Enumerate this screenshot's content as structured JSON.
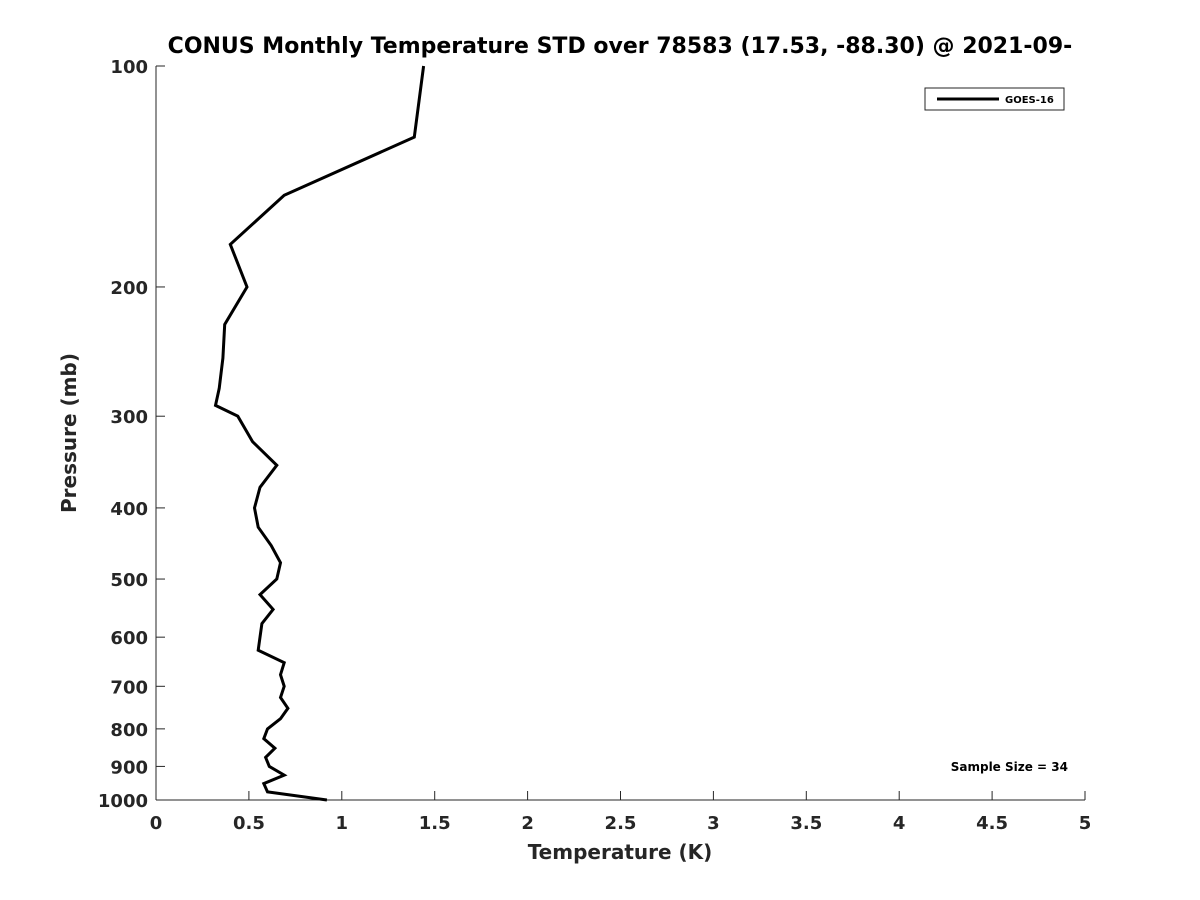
{
  "chart_data": {
    "type": "line",
    "title": "CONUS Monthly Temperature STD over 78583 (17.53, -88.30) @ 2021-09-",
    "xlabel": "Temperature (K)",
    "ylabel": "Pressure (mb)",
    "xlim": [
      0,
      5
    ],
    "ylim": [
      100,
      1000
    ],
    "y_scale": "log",
    "y_reversed": true,
    "xticks": [
      0,
      0.5,
      1,
      1.5,
      2,
      2.5,
      3,
      3.5,
      4,
      4.5,
      5
    ],
    "xtick_labels": [
      "0",
      "0.5",
      "1",
      "1.5",
      "2",
      "2.5",
      "3",
      "3.5",
      "4",
      "4.5",
      "5"
    ],
    "yticks": [
      100,
      200,
      300,
      400,
      500,
      600,
      700,
      800,
      900,
      1000
    ],
    "ytick_labels": [
      "100",
      "200",
      "300",
      "400",
      "500",
      "600",
      "700",
      "800",
      "900",
      "1000"
    ],
    "grid": false,
    "legend_position": "top-right",
    "annotation": "Sample Size = 34",
    "series": [
      {
        "name": "GOES-16",
        "color": "#000000",
        "points": [
          {
            "x": 1.44,
            "p": 100
          },
          {
            "x": 1.39,
            "p": 125
          },
          {
            "x": 0.69,
            "p": 150
          },
          {
            "x": 0.4,
            "p": 175
          },
          {
            "x": 0.49,
            "p": 200
          },
          {
            "x": 0.37,
            "p": 225
          },
          {
            "x": 0.36,
            "p": 250
          },
          {
            "x": 0.34,
            "p": 275
          },
          {
            "x": 0.32,
            "p": 290
          },
          {
            "x": 0.44,
            "p": 300
          },
          {
            "x": 0.52,
            "p": 325
          },
          {
            "x": 0.65,
            "p": 350
          },
          {
            "x": 0.56,
            "p": 375
          },
          {
            "x": 0.53,
            "p": 400
          },
          {
            "x": 0.55,
            "p": 425
          },
          {
            "x": 0.62,
            "p": 450
          },
          {
            "x": 0.67,
            "p": 475
          },
          {
            "x": 0.65,
            "p": 500
          },
          {
            "x": 0.56,
            "p": 525
          },
          {
            "x": 0.63,
            "p": 550
          },
          {
            "x": 0.57,
            "p": 575
          },
          {
            "x": 0.56,
            "p": 600
          },
          {
            "x": 0.55,
            "p": 625
          },
          {
            "x": 0.69,
            "p": 650
          },
          {
            "x": 0.67,
            "p": 675
          },
          {
            "x": 0.69,
            "p": 700
          },
          {
            "x": 0.67,
            "p": 725
          },
          {
            "x": 0.71,
            "p": 750
          },
          {
            "x": 0.67,
            "p": 775
          },
          {
            "x": 0.6,
            "p": 800
          },
          {
            "x": 0.58,
            "p": 825
          },
          {
            "x": 0.64,
            "p": 850
          },
          {
            "x": 0.59,
            "p": 875
          },
          {
            "x": 0.61,
            "p": 900
          },
          {
            "x": 0.69,
            "p": 925
          },
          {
            "x": 0.58,
            "p": 950
          },
          {
            "x": 0.6,
            "p": 975
          },
          {
            "x": 0.92,
            "p": 1000
          }
        ]
      }
    ]
  }
}
